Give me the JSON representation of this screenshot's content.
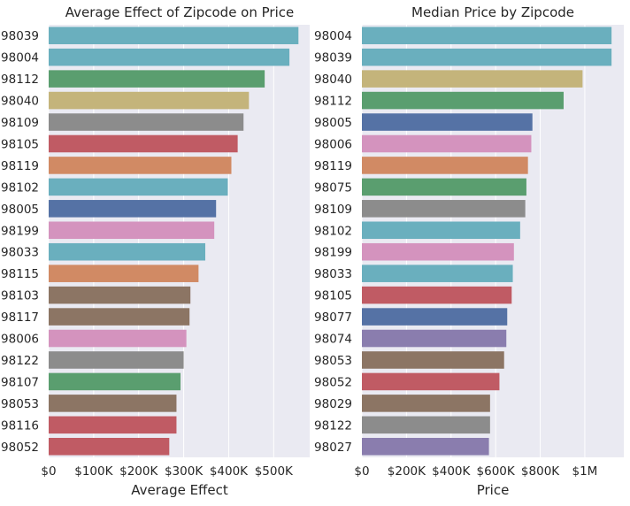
{
  "chart_data": [
    {
      "type": "bar",
      "orientation": "horizontal",
      "title": "Average Effect of Zipcode on Price",
      "xlabel": "Average Effect",
      "ylabel": "",
      "xlim": [
        0,
        580000
      ],
      "xticks": [
        0,
        100000,
        200000,
        300000,
        400000,
        500000
      ],
      "xtick_labels": [
        "$0",
        "$100K",
        "$200K",
        "$300K",
        "$400K",
        "$500K"
      ],
      "grid": true,
      "categories": [
        "98039",
        "98004",
        "98112",
        "98040",
        "98109",
        "98105",
        "98119",
        "98102",
        "98005",
        "98199",
        "98033",
        "98115",
        "98103",
        "98117",
        "98006",
        "98122",
        "98107",
        "98053",
        "98116",
        "98052"
      ],
      "values": [
        555000,
        535000,
        480000,
        445000,
        433000,
        420000,
        406000,
        398000,
        372000,
        368000,
        348000,
        333000,
        315000,
        313000,
        306000,
        300000,
        293000,
        284000,
        284000,
        268000
      ],
      "colors": [
        "#6AAFBE",
        "#6AAFBE",
        "#5A9E6F",
        "#C4B47B",
        "#8C8C8C",
        "#C05B64",
        "#D18A64",
        "#6AAFBE",
        "#5572A5",
        "#D493BE",
        "#6AAFBE",
        "#D18A64",
        "#8C7564",
        "#8C7564",
        "#D493BE",
        "#8C8C8C",
        "#5A9E6F",
        "#8C7564",
        "#C05B64",
        "#C05B64"
      ]
    },
    {
      "type": "bar",
      "orientation": "horizontal",
      "title": "Median Price by Zipcode",
      "xlabel": "Price",
      "ylabel": "",
      "xlim": [
        0,
        1175000
      ],
      "xticks": [
        0,
        200000,
        400000,
        600000,
        800000,
        1000000
      ],
      "xtick_labels": [
        "$0",
        "$200K",
        "$400K",
        "$600K",
        "$800K",
        "$1M"
      ],
      "grid": true,
      "categories": [
        "98004",
        "98039",
        "98040",
        "98112",
        "98005",
        "98006",
        "98119",
        "98075",
        "98109",
        "98102",
        "98199",
        "98033",
        "98105",
        "98077",
        "98074",
        "98053",
        "98052",
        "98029",
        "98122",
        "98027"
      ],
      "values": [
        1120000,
        1120000,
        990000,
        905000,
        765000,
        760000,
        745000,
        738000,
        733000,
        710000,
        682000,
        677000,
        672000,
        652000,
        648000,
        638000,
        617000,
        575000,
        575000,
        570000
      ],
      "colors": [
        "#6AAFBE",
        "#6AAFBE",
        "#C4B47B",
        "#5A9E6F",
        "#5572A5",
        "#D493BE",
        "#D18A64",
        "#5A9E6F",
        "#8C8C8C",
        "#6AAFBE",
        "#D493BE",
        "#6AAFBE",
        "#C05B64",
        "#5572A5",
        "#8A7DAE",
        "#8C7564",
        "#C05B64",
        "#8C7564",
        "#8C8C8C",
        "#8A7DAE"
      ]
    }
  ],
  "style": {
    "plot_background": "#EAEAF2",
    "grid_color": "#FFFFFF",
    "text_color": "#262626"
  }
}
